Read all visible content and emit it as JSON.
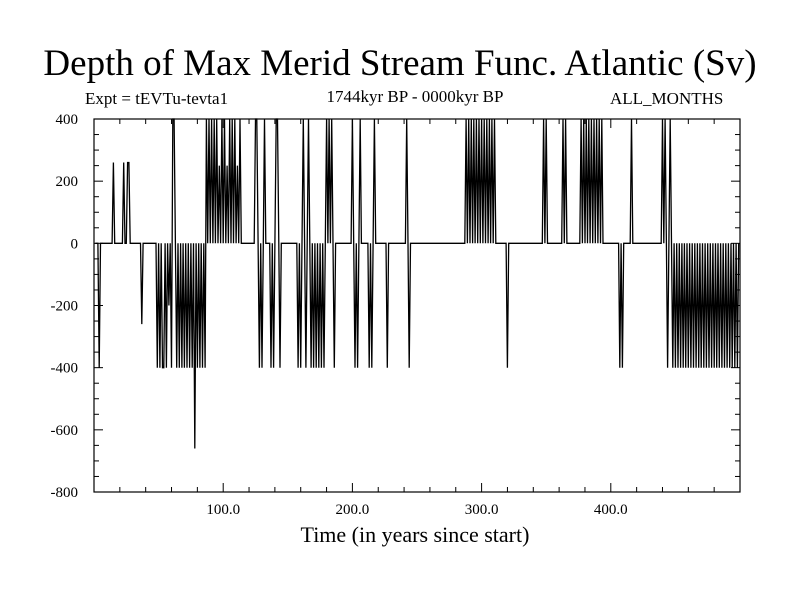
{
  "chart_data": {
    "type": "line",
    "title": "Depth of Max Merid Stream Func. Atlantic (Sv)",
    "expt_label": "Expt = tEVTu-tevta1",
    "subtitle": "1744kyr BP - 0000kyr BP",
    "months_label": "ALL_MONTHS",
    "xlabel": "Time (in years since start)",
    "ylabel": "",
    "xlim": [
      0,
      500
    ],
    "ylim": [
      -800,
      400
    ],
    "x_ticks": [
      100,
      200,
      300,
      400
    ],
    "x_tick_labels": [
      "100.0",
      "200.0",
      "300.0",
      "400.0"
    ],
    "y_ticks": [
      400,
      200,
      0,
      -200,
      -400,
      -600,
      -800
    ],
    "y_tick_labels": [
      "400",
      "200",
      "0",
      "-200",
      "-400",
      "-600",
      "-800"
    ],
    "grid": false,
    "series": [
      {
        "values": [
          [
            1,
            0
          ],
          [
            3,
            0
          ],
          [
            4,
            -400
          ],
          [
            5,
            0
          ],
          [
            14,
            0
          ],
          [
            15,
            260
          ],
          [
            16,
            0
          ],
          [
            22,
            0
          ],
          [
            23,
            260
          ],
          [
            24,
            0
          ],
          [
            25,
            0
          ],
          [
            26,
            260
          ],
          [
            27,
            260
          ],
          [
            28,
            0
          ],
          [
            36,
            0
          ],
          [
            37,
            -260
          ],
          [
            38,
            0
          ],
          [
            48,
            0
          ],
          [
            49,
            -400
          ],
          [
            50,
            0
          ],
          [
            51,
            -400
          ],
          [
            52,
            0
          ],
          [
            53,
            -400
          ],
          [
            54,
            -400
          ],
          [
            55,
            0
          ],
          [
            56,
            -400
          ],
          [
            57,
            0
          ],
          [
            58,
            -200
          ],
          [
            59,
            0
          ],
          [
            60,
            -400
          ],
          [
            61,
            400
          ],
          [
            62,
            400
          ],
          [
            63,
            0
          ],
          [
            64,
            -400
          ],
          [
            65,
            0
          ],
          [
            66,
            -400
          ],
          [
            67,
            0
          ],
          [
            68,
            -400
          ],
          [
            69,
            0
          ],
          [
            70,
            -400
          ],
          [
            71,
            0
          ],
          [
            72,
            -400
          ],
          [
            73,
            0
          ],
          [
            74,
            -400
          ],
          [
            75,
            0
          ],
          [
            76,
            -400
          ],
          [
            77,
            0
          ],
          [
            78,
            -660
          ],
          [
            79,
            0
          ],
          [
            80,
            -400
          ],
          [
            81,
            0
          ],
          [
            82,
            -400
          ],
          [
            83,
            0
          ],
          [
            84,
            -400
          ],
          [
            85,
            0
          ],
          [
            86,
            -400
          ],
          [
            87,
            400
          ],
          [
            88,
            0
          ],
          [
            89,
            400
          ],
          [
            90,
            0
          ],
          [
            91,
            400
          ],
          [
            92,
            0
          ],
          [
            93,
            400
          ],
          [
            94,
            0
          ],
          [
            95,
            400
          ],
          [
            96,
            0
          ],
          [
            97,
            250
          ],
          [
            98,
            0
          ],
          [
            99,
            400
          ],
          [
            100,
            0
          ],
          [
            101,
            400
          ],
          [
            102,
            0
          ],
          [
            103,
            250
          ],
          [
            104,
            0
          ],
          [
            105,
            400
          ],
          [
            106,
            0
          ],
          [
            107,
            400
          ],
          [
            108,
            0
          ],
          [
            109,
            400
          ],
          [
            110,
            0
          ],
          [
            111,
            250
          ],
          [
            112,
            0
          ],
          [
            113,
            400
          ],
          [
            114,
            0
          ],
          [
            124,
            0
          ],
          [
            125,
            400
          ],
          [
            126,
            400
          ],
          [
            127,
            0
          ],
          [
            128,
            -400
          ],
          [
            129,
            0
          ],
          [
            130,
            -400
          ],
          [
            131,
            0
          ],
          [
            132,
            400
          ],
          [
            133,
            0
          ],
          [
            136,
            0
          ],
          [
            137,
            -400
          ],
          [
            138,
            0
          ],
          [
            139,
            -400
          ],
          [
            140,
            0
          ],
          [
            141,
            400
          ],
          [
            142,
            400
          ],
          [
            143,
            0
          ],
          [
            144,
            -400
          ],
          [
            145,
            0
          ],
          [
            157,
            0
          ],
          [
            158,
            -400
          ],
          [
            159,
            0
          ],
          [
            160,
            -400
          ],
          [
            161,
            0
          ],
          [
            162,
            400
          ],
          [
            163,
            0
          ],
          [
            164,
            -400
          ],
          [
            165,
            0
          ],
          [
            166,
            400
          ],
          [
            167,
            0
          ],
          [
            168,
            -400
          ],
          [
            169,
            0
          ],
          [
            170,
            -400
          ],
          [
            171,
            0
          ],
          [
            172,
            -400
          ],
          [
            173,
            0
          ],
          [
            174,
            -400
          ],
          [
            175,
            0
          ],
          [
            176,
            -400
          ],
          [
            177,
            0
          ],
          [
            178,
            -400
          ],
          [
            179,
            0
          ],
          [
            180,
            400
          ],
          [
            181,
            0
          ],
          [
            182,
            400
          ],
          [
            183,
            0
          ],
          [
            184,
            400
          ],
          [
            185,
            0
          ],
          [
            186,
            -400
          ],
          [
            187,
            0
          ],
          [
            199,
            0
          ],
          [
            200,
            400
          ],
          [
            201,
            0
          ],
          [
            202,
            -400
          ],
          [
            203,
            0
          ],
          [
            204,
            -400
          ],
          [
            205,
            0
          ],
          [
            206,
            400
          ],
          [
            207,
            0
          ],
          [
            212,
            0
          ],
          [
            213,
            -400
          ],
          [
            214,
            0
          ],
          [
            215,
            -400
          ],
          [
            216,
            0
          ],
          [
            217,
            400
          ],
          [
            218,
            0
          ],
          [
            226,
            0
          ],
          [
            227,
            -400
          ],
          [
            228,
            0
          ],
          [
            241,
            0
          ],
          [
            242,
            400
          ],
          [
            243,
            0
          ],
          [
            244,
            -400
          ],
          [
            245,
            0
          ],
          [
            287,
            0
          ],
          [
            288,
            400
          ],
          [
            289,
            0
          ],
          [
            290,
            400
          ],
          [
            291,
            0
          ],
          [
            292,
            400
          ],
          [
            293,
            0
          ],
          [
            294,
            400
          ],
          [
            295,
            0
          ],
          [
            296,
            400
          ],
          [
            297,
            0
          ],
          [
            298,
            400
          ],
          [
            299,
            0
          ],
          [
            300,
            400
          ],
          [
            301,
            0
          ],
          [
            302,
            400
          ],
          [
            303,
            0
          ],
          [
            304,
            400
          ],
          [
            305,
            0
          ],
          [
            306,
            400
          ],
          [
            307,
            0
          ],
          [
            308,
            400
          ],
          [
            309,
            0
          ],
          [
            310,
            400
          ],
          [
            311,
            0
          ],
          [
            319,
            0
          ],
          [
            320,
            -400
          ],
          [
            321,
            0
          ],
          [
            347,
            0
          ],
          [
            348,
            400
          ],
          [
            349,
            0
          ],
          [
            350,
            400
          ],
          [
            351,
            0
          ],
          [
            362,
            0
          ],
          [
            363,
            400
          ],
          [
            364,
            0
          ],
          [
            365,
            400
          ],
          [
            366,
            0
          ],
          [
            376,
            0
          ],
          [
            377,
            400
          ],
          [
            378,
            0
          ],
          [
            379,
            400
          ],
          [
            380,
            0
          ],
          [
            381,
            400
          ],
          [
            382,
            0
          ],
          [
            383,
            400
          ],
          [
            384,
            0
          ],
          [
            385,
            400
          ],
          [
            386,
            0
          ],
          [
            387,
            400
          ],
          [
            388,
            0
          ],
          [
            389,
            400
          ],
          [
            390,
            0
          ],
          [
            391,
            400
          ],
          [
            392,
            0
          ],
          [
            393,
            400
          ],
          [
            394,
            0
          ],
          [
            406,
            0
          ],
          [
            407,
            -400
          ],
          [
            408,
            0
          ],
          [
            409,
            -400
          ],
          [
            410,
            0
          ],
          [
            415,
            0
          ],
          [
            416,
            400
          ],
          [
            417,
            0
          ],
          [
            439,
            0
          ],
          [
            440,
            400
          ],
          [
            441,
            0
          ],
          [
            442,
            400
          ],
          [
            443,
            0
          ],
          [
            444,
            -400
          ],
          [
            445,
            0
          ],
          [
            446,
            400
          ],
          [
            447,
            0
          ],
          [
            448,
            -400
          ],
          [
            449,
            0
          ],
          [
            450,
            -400
          ],
          [
            451,
            0
          ],
          [
            452,
            -400
          ],
          [
            453,
            0
          ],
          [
            454,
            -400
          ],
          [
            455,
            0
          ],
          [
            456,
            -400
          ],
          [
            457,
            0
          ],
          [
            458,
            -400
          ],
          [
            459,
            0
          ],
          [
            460,
            -400
          ],
          [
            461,
            0
          ],
          [
            462,
            -400
          ],
          [
            463,
            0
          ],
          [
            464,
            -400
          ],
          [
            465,
            0
          ],
          [
            466,
            -400
          ],
          [
            467,
            0
          ],
          [
            468,
            -400
          ],
          [
            469,
            0
          ],
          [
            470,
            -400
          ],
          [
            471,
            0
          ],
          [
            472,
            -400
          ],
          [
            473,
            0
          ],
          [
            474,
            -400
          ],
          [
            475,
            0
          ],
          [
            476,
            -400
          ],
          [
            477,
            0
          ],
          [
            478,
            -400
          ],
          [
            479,
            0
          ],
          [
            480,
            -400
          ],
          [
            481,
            0
          ],
          [
            482,
            -400
          ],
          [
            483,
            0
          ],
          [
            484,
            -400
          ],
          [
            485,
            0
          ],
          [
            486,
            -400
          ],
          [
            487,
            0
          ],
          [
            488,
            -400
          ],
          [
            489,
            0
          ],
          [
            490,
            -400
          ],
          [
            491,
            0
          ],
          [
            492,
            -400
          ],
          [
            493,
            0
          ],
          [
            494,
            -400
          ],
          [
            495,
            0
          ],
          [
            496,
            -400
          ],
          [
            497,
            0
          ],
          [
            498,
            -400
          ],
          [
            499,
            0
          ]
        ]
      }
    ]
  }
}
